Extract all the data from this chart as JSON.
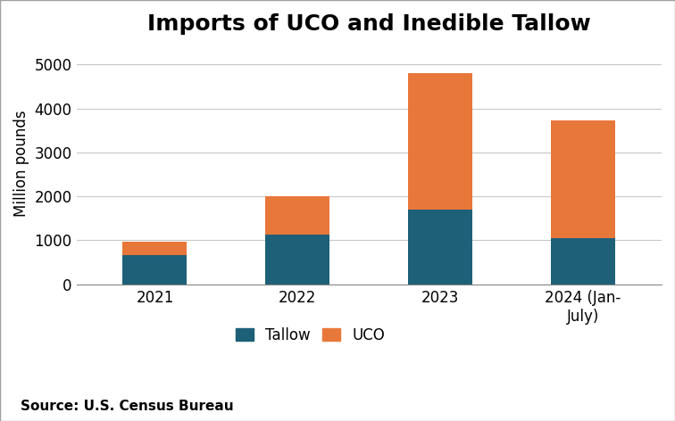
{
  "title": "Imports of UCO and Inedible Tallow",
  "categories": [
    "2021",
    "2022",
    "2023",
    "2024 (Jan-\nJuly)"
  ],
  "tallow_values": [
    670,
    1130,
    1700,
    1050
  ],
  "uco_values": [
    290,
    870,
    3100,
    2680
  ],
  "tallow_color": "#1d6078",
  "uco_color": "#e8773a",
  "ylabel": "Million pounds",
  "ylim": [
    0,
    5500
  ],
  "yticks": [
    0,
    1000,
    2000,
    3000,
    4000,
    5000
  ],
  "legend_labels": [
    "Tallow",
    "UCO"
  ],
  "source_text": "Source: U.S. Census Bureau",
  "title_fontsize": 18,
  "axis_fontsize": 12,
  "tick_fontsize": 12,
  "legend_fontsize": 12,
  "source_fontsize": 11,
  "background_color": "#ffffff",
  "bar_width": 0.45,
  "grid_color": "#c8c8c8",
  "border_color": "#a0a0a0"
}
